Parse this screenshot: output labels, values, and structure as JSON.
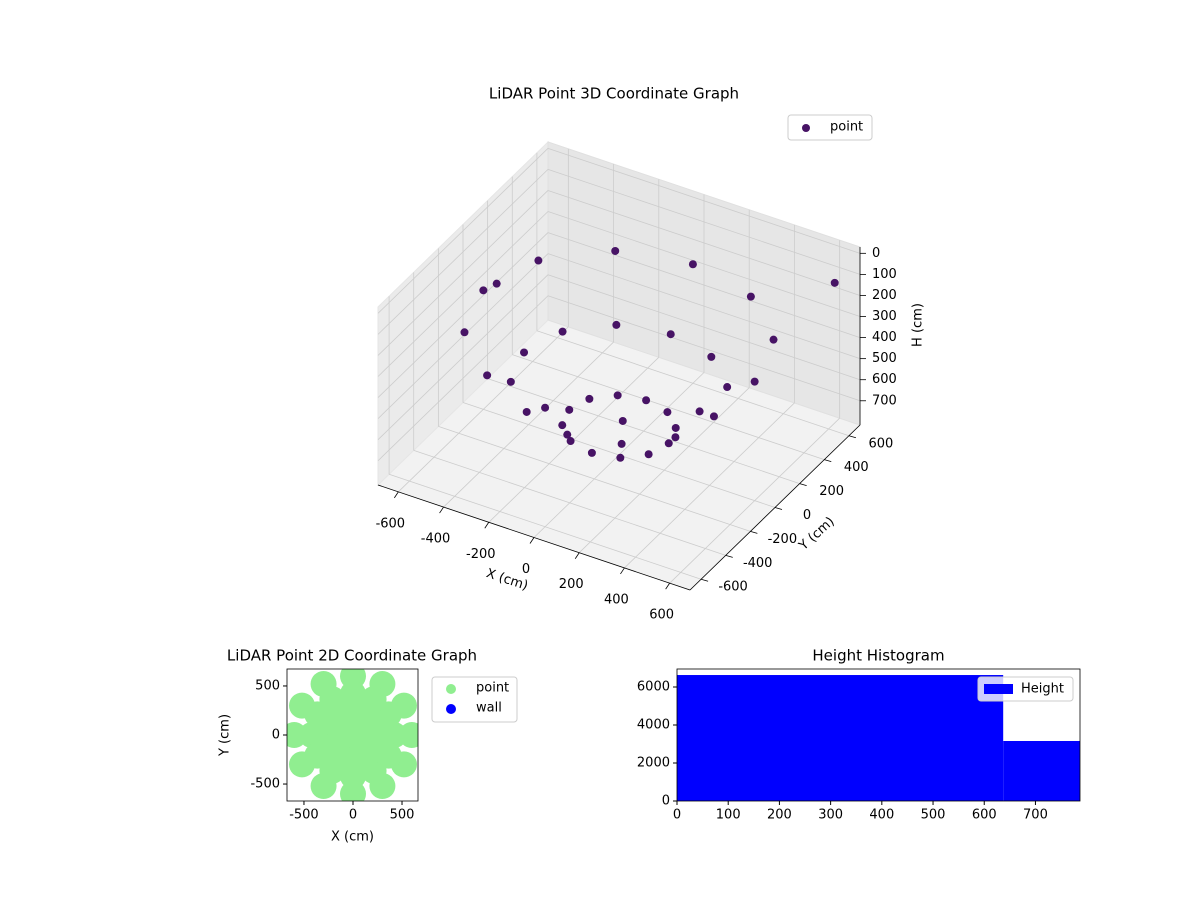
{
  "chart_data": [
    {
      "type": "scatter3d",
      "title": "LiDAR Point 3D Coordinate Graph",
      "x_label": "X (cm)",
      "y_label": "Y (cm)",
      "z_label": "H (cm)",
      "xlim": [
        -690,
        690
      ],
      "ylim": [
        -690,
        690
      ],
      "zlim": [
        815,
        -30
      ],
      "xticks": [
        -600,
        -400,
        -200,
        0,
        200,
        400,
        600
      ],
      "yticks": [
        -600,
        -400,
        -200,
        0,
        200,
        400,
        600
      ],
      "zticks": [
        0,
        100,
        200,
        300,
        400,
        500,
        600,
        700
      ],
      "grid": true,
      "legend": "upper right",
      "series": [
        {
          "name": "point",
          "color": "#471365",
          "x": [
            600,
            520,
            300,
            0,
            -300,
            -520,
            -600,
            -520,
            -300,
            0,
            300,
            520,
            420,
            364,
            210,
            0,
            -210,
            -364,
            -420,
            -364,
            -210,
            0,
            210,
            364,
            220,
            191,
            110,
            0,
            -110,
            -191,
            -220,
            -191,
            -110,
            0,
            110,
            191,
            -650,
            600
          ],
          "y": [
            0,
            300,
            520,
            600,
            520,
            300,
            0,
            -300,
            -520,
            -600,
            -520,
            -300,
            0,
            210,
            364,
            420,
            364,
            210,
            0,
            -210,
            -364,
            -420,
            -364,
            -210,
            0,
            110,
            191,
            220,
            191,
            110,
            0,
            -110,
            -191,
            -220,
            -191,
            -110,
            200,
            650
          ],
          "z": [
            250,
            250,
            250,
            250,
            250,
            250,
            250,
            250,
            250,
            250,
            250,
            250,
            480,
            480,
            480,
            480,
            480,
            480,
            480,
            480,
            480,
            480,
            480,
            480,
            680,
            680,
            680,
            680,
            680,
            680,
            680,
            680,
            680,
            680,
            680,
            680,
            350,
            150
          ]
        }
      ]
    },
    {
      "type": "scatter",
      "title": "LiDAR Point 2D Coordinate Graph",
      "x_label": "X (cm)",
      "y_label": "Y (cm)",
      "xlim": [
        -673,
        663
      ],
      "ylim": [
        -673,
        673
      ],
      "xticks": [
        -500,
        0,
        500
      ],
      "yticks": [
        -500,
        0,
        500
      ],
      "legend": "outside right",
      "series": [
        {
          "name": "point",
          "color": "#90ee90",
          "x": [
            600,
            520,
            300,
            0,
            -300,
            -520,
            -600,
            -520,
            -300,
            0,
            300,
            520,
            420,
            364,
            210,
            0,
            -210,
            -364,
            -420,
            -364,
            -210,
            0,
            210,
            364,
            220,
            191,
            110,
            0,
            -110,
            -191,
            -220,
            -191,
            -110,
            0,
            110,
            191,
            0
          ],
          "y": [
            0,
            300,
            520,
            600,
            520,
            300,
            0,
            -300,
            -520,
            -600,
            -520,
            -300,
            0,
            210,
            364,
            420,
            364,
            210,
            0,
            -210,
            -364,
            -420,
            -364,
            -210,
            0,
            110,
            191,
            220,
            191,
            110,
            0,
            -110,
            -191,
            -220,
            -191,
            -110,
            0
          ]
        },
        {
          "name": "wall",
          "color": "#0000ff",
          "x": [],
          "y": []
        }
      ]
    },
    {
      "type": "histogram",
      "title": "Height Histogram",
      "bins": [
        0,
        637,
        787
      ],
      "series": [
        {
          "name": "Height",
          "color": "#0000ff",
          "values": [
            6630,
            3158
          ]
        }
      ],
      "xlim": [
        0,
        787
      ],
      "ylim": [
        0,
        6947
      ],
      "xticks": [
        0,
        100,
        200,
        300,
        400,
        500,
        600,
        700
      ],
      "yticks": [
        0,
        2000,
        4000,
        6000
      ],
      "legend": "upper right"
    }
  ]
}
